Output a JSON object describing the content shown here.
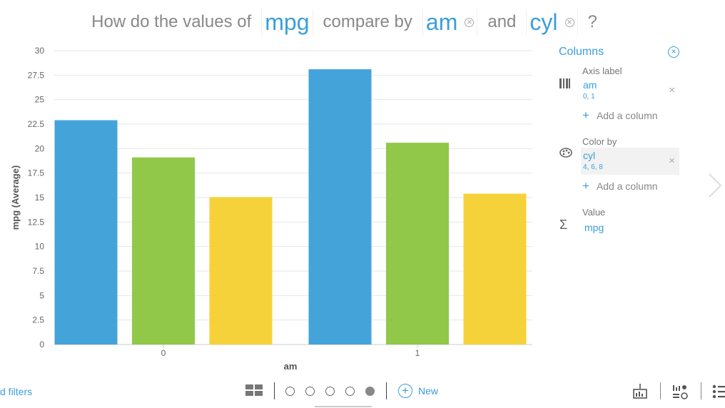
{
  "question": {
    "prefix": "How do the values of",
    "measure": "mpg",
    "middle": "compare by",
    "dim1": "am",
    "conj": "and",
    "dim2": "cyl",
    "suffix": "?",
    "remove_glyph": "×"
  },
  "panel": {
    "title": "Columns",
    "close_glyph": "×",
    "axis": {
      "label": "Axis label",
      "icon": "bar-columns-icon",
      "field": "am",
      "values": "0, 1"
    },
    "color": {
      "label": "Color by",
      "icon": "palette-icon",
      "field": "cyl",
      "values": "4, 6, 8"
    },
    "value": {
      "label": "Value",
      "icon": "sigma-icon",
      "field": "mpg",
      "sigma": "Σ"
    },
    "add_column": "Add a column",
    "remove_glyph": "×"
  },
  "bottom": {
    "filters_label": "d filters",
    "new_label": "New",
    "pages": 5,
    "active_page": 4
  },
  "colors": {
    "accent": "#3a9fd8",
    "series": [
      "#3a9fd8",
      "#8bc53f",
      "#f6d02f"
    ]
  },
  "chart_data": {
    "type": "bar",
    "categories": [
      "0",
      "1"
    ],
    "series": [
      {
        "values": [
          22.9,
          28.1
        ]
      },
      {
        "values": [
          19.1,
          20.6
        ]
      },
      {
        "values": [
          15.05,
          15.4
        ]
      }
    ],
    "xlabel": "am",
    "ylabel": "mpg (Average)",
    "ylim": [
      0,
      30
    ],
    "yticks": [
      "0",
      "2.5",
      "5",
      "7.5",
      "10",
      "12.5",
      "15",
      "17.5",
      "20",
      "22.5",
      "25",
      "27.5",
      "30"
    ],
    "grid": true
  }
}
